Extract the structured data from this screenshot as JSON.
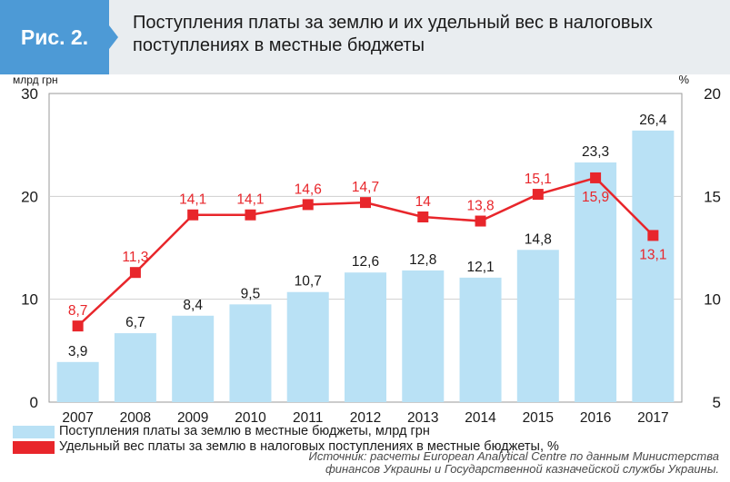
{
  "figure_label": "Рис. 2.",
  "title_line1": "Поступления платы за землю и их удельный вес в налоговых",
  "title_line2": "поступлениях в местные бюджеты",
  "colors": {
    "badge": "#4d9ad6",
    "bars": "#b9e1f5",
    "line": "#e8262b",
    "header_bg": "#e9edf0"
  },
  "chart_data": {
    "type": "bar+line",
    "categories": [
      "2007",
      "2008",
      "2009",
      "2010",
      "2011",
      "2012",
      "2013",
      "2014",
      "2015",
      "2016",
      "2017"
    ],
    "series": [
      {
        "name": "Поступления платы за землю в местные бюджеты, млрд грн",
        "type": "bar",
        "axis": "left",
        "values": [
          3.9,
          6.7,
          8.4,
          9.5,
          10.7,
          12.6,
          12.8,
          12.1,
          14.8,
          23.3,
          26.4
        ],
        "labels": [
          "3,9",
          "6,7",
          "8,4",
          "9,5",
          "10,7",
          "12,6",
          "12,8",
          "12,1",
          "14,8",
          "23,3",
          "26,4"
        ]
      },
      {
        "name": "Удельный вес платы за землю в  налоговых поступлениях в местные бюджеты, %",
        "type": "line",
        "axis": "right",
        "values": [
          8.7,
          11.3,
          14.1,
          14.1,
          14.6,
          14.7,
          14.0,
          13.8,
          15.1,
          15.9,
          13.1
        ],
        "labels": [
          "8,7",
          "11,3",
          "14,1",
          "14,1",
          "14,6",
          "14,7",
          "14",
          "13,8",
          "15,1",
          "15,9",
          "13,1"
        ]
      }
    ],
    "left_axis": {
      "unit_label": "млрд грн",
      "ylim": [
        0,
        30
      ],
      "ticks": [
        0,
        10,
        20,
        30
      ],
      "tick_labels": [
        "0",
        "10",
        "20",
        "30"
      ]
    },
    "right_axis": {
      "unit_label": "%",
      "ylim": [
        5,
        20
      ],
      "ticks": [
        5,
        10,
        15,
        20
      ],
      "tick_labels": [
        "5",
        "10",
        "15",
        "20"
      ]
    },
    "grid": "horizontal",
    "legend_position": "bottom-left"
  },
  "source_line1": "Источник: расчеты European Analytical Centre по данным Министерства",
  "source_line2": "финансов Украины и Государственной казначейской службы Украины."
}
